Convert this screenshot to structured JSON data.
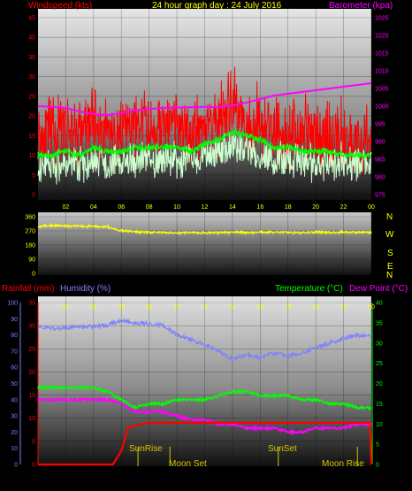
{
  "chart_data": [
    {
      "type": "line",
      "title": "24 hour graph day : 24 July 2016",
      "ylabel_left": "Windspeed (kts)",
      "ylabel_right": "Barometer (kpa)",
      "x_ticks": [
        "02",
        "04",
        "06",
        "08",
        "10",
        "12",
        "14",
        "16",
        "18",
        "20",
        "22",
        "00"
      ],
      "ylim_left": [
        0,
        45
      ],
      "y_ticks_left": [
        "0",
        "5",
        "10",
        "15",
        "20",
        "25",
        "30",
        "35",
        "40",
        "45"
      ],
      "ylim_right": [
        975,
        1025
      ],
      "y_ticks_right": [
        "975",
        "980",
        "985",
        "990",
        "995",
        "1000",
        "1005",
        "1010",
        "1015",
        "1020",
        "1025"
      ],
      "grid": true,
      "series": [
        {
          "color": "#ff0000",
          "x": [
            0,
            1,
            2,
            3,
            4,
            5,
            6,
            7,
            8,
            9,
            10,
            11,
            12,
            13,
            14,
            15,
            16,
            17,
            18,
            19,
            20,
            21,
            22,
            23,
            24
          ],
          "values": [
            16,
            15,
            17,
            16,
            18,
            17,
            15,
            18,
            17,
            17,
            17,
            16,
            18,
            19,
            22,
            19,
            18,
            17,
            16,
            16,
            15,
            15,
            14,
            14,
            13
          ]
        },
        {
          "color": "#00ff00",
          "x": [
            0,
            1,
            2,
            3,
            4,
            5,
            6,
            7,
            8,
            9,
            10,
            11,
            12,
            13,
            14,
            15,
            16,
            17,
            18,
            19,
            20,
            21,
            22,
            23,
            24
          ],
          "values": [
            10,
            10,
            11,
            10,
            12,
            11,
            11,
            12,
            12,
            12,
            12,
            11,
            13,
            14,
            16,
            15,
            14,
            12,
            12,
            11,
            11,
            11,
            10,
            10,
            10
          ]
        },
        {
          "color": "#ccffcc",
          "x": [
            0,
            1,
            2,
            3,
            4,
            5,
            6,
            7,
            8,
            9,
            10,
            11,
            12,
            13,
            14,
            15,
            16,
            17,
            18,
            19,
            20,
            21,
            22,
            23,
            24
          ],
          "values": [
            7,
            7,
            8,
            7,
            8,
            8,
            8,
            8,
            9,
            9,
            9,
            8,
            10,
            11,
            12,
            11,
            10,
            9,
            9,
            8,
            8,
            8,
            8,
            8,
            8
          ]
        },
        {
          "color": "#ff00ff",
          "axis": "right",
          "x": [
            0,
            1,
            2,
            3,
            4,
            5,
            6,
            7,
            8,
            9,
            10,
            11,
            12,
            13,
            14,
            15,
            16,
            17,
            18,
            19,
            20,
            21,
            22,
            23,
            24
          ],
          "values": [
            1000,
            999.8,
            999.5,
            998.5,
            997.8,
            997.5,
            998,
            998.8,
            999.2,
            999.5,
            999.6,
            999.7,
            999.8,
            999.7,
            1000.2,
            1001,
            1002,
            1003,
            1003.5,
            1004,
            1004.5,
            1005,
            1005.5,
            1006,
            1006.5
          ]
        }
      ]
    },
    {
      "type": "line",
      "x_ticks": [],
      "ylim": [
        0,
        360
      ],
      "y_ticks": [
        "0",
        "90",
        "180",
        "270",
        "360"
      ],
      "right_labels": [
        "N",
        "W",
        "S",
        "E",
        "N"
      ],
      "grid": true,
      "series": [
        {
          "color": "#ffff00",
          "x": [
            0,
            1,
            2,
            3,
            4,
            5,
            6,
            7,
            8,
            9,
            10,
            11,
            12,
            13,
            14,
            15,
            16,
            17,
            18,
            19,
            20,
            21,
            22,
            23,
            24
          ],
          "values": [
            300,
            305,
            302,
            300,
            298,
            295,
            270,
            265,
            262,
            260,
            258,
            260,
            258,
            260,
            262,
            260,
            262,
            262,
            260,
            260,
            262,
            262,
            262,
            262,
            262
          ]
        }
      ]
    },
    {
      "type": "line",
      "ylabel_left": "Rainfall (mm)",
      "ylabel_left2": "Humidity (%)",
      "ylabel_right": "Temperature (°C)",
      "ylabel_right2": "Dew Point (°C)",
      "y_ticks_humidity": [
        "0",
        "10",
        "20",
        "30",
        "40",
        "50",
        "60",
        "70",
        "80",
        "90",
        "100"
      ],
      "ylim_humidity": [
        0,
        100
      ],
      "y_ticks_rain": [
        "0",
        "5",
        "10",
        "15",
        "20",
        "25",
        "30",
        "35"
      ],
      "ylim_rain": [
        0,
        35
      ],
      "y_ticks_temp": [
        "0",
        "5",
        "10",
        "15",
        "20",
        "25",
        "30",
        "35",
        "40"
      ],
      "ylim_temp": [
        0,
        40
      ],
      "x_ticks": [
        "02",
        "04",
        "06",
        "08",
        "10",
        "12",
        "14",
        "16",
        "18",
        "20",
        "22",
        "00"
      ],
      "annotations": [
        {
          "text": "SunRise",
          "x": 7.2
        },
        {
          "text": "Moon Set",
          "x": 9.5
        },
        {
          "text": "SunSet",
          "x": 17.3
        },
        {
          "text": "Moon Rise",
          "x": 23.0
        }
      ],
      "series": [
        {
          "color": "#8080ff",
          "axis": "humidity",
          "x": [
            0,
            1,
            2,
            3,
            4,
            5,
            6,
            7,
            8,
            9,
            10,
            11,
            12,
            13,
            14,
            15,
            16,
            17,
            18,
            19,
            20,
            21,
            22,
            23,
            24
          ],
          "values": [
            85,
            84,
            84,
            85,
            85,
            86,
            89,
            87,
            87,
            86,
            80,
            77,
            74,
            70,
            65,
            68,
            66,
            69,
            67,
            69,
            72,
            75,
            78,
            80,
            79
          ]
        },
        {
          "color": "#00ff00",
          "axis": "temp",
          "x": [
            0,
            1,
            2,
            3,
            4,
            5,
            6,
            7,
            8,
            9,
            10,
            11,
            12,
            13,
            14,
            15,
            16,
            17,
            18,
            19,
            20,
            21,
            22,
            23,
            24
          ],
          "values": [
            19,
            19,
            19,
            19,
            19,
            18,
            16,
            14,
            15,
            15,
            16,
            16,
            16,
            17,
            18,
            18,
            17,
            17,
            17,
            16,
            16,
            15,
            15,
            14,
            14
          ]
        },
        {
          "color": "#ff00ff",
          "axis": "temp",
          "x": [
            0,
            1,
            2,
            3,
            4,
            5,
            6,
            7,
            8,
            9,
            10,
            11,
            12,
            13,
            14,
            15,
            16,
            17,
            18,
            19,
            20,
            21,
            22,
            23,
            24
          ],
          "values": [
            16,
            16,
            16,
            16,
            16,
            16,
            15,
            13,
            13,
            13,
            12,
            11,
            11,
            10,
            10,
            9,
            9,
            9,
            8,
            8,
            9,
            9,
            9,
            10,
            10
          ]
        },
        {
          "color": "#ff0000",
          "axis": "rain",
          "x": [
            0,
            1,
            2,
            3,
            4,
            5,
            5.4,
            6,
            6.5,
            7,
            8,
            9,
            10,
            11,
            12,
            13,
            14,
            15,
            16,
            17,
            18,
            19,
            20,
            21,
            22,
            23,
            23.9,
            24
          ],
          "values": [
            0,
            0,
            0,
            0,
            0,
            0,
            0,
            3,
            8,
            8.5,
            9,
            9,
            9,
            9,
            9,
            9,
            9,
            9,
            9,
            9,
            9,
            9,
            9,
            9,
            9,
            9,
            9,
            0
          ]
        }
      ]
    }
  ]
}
